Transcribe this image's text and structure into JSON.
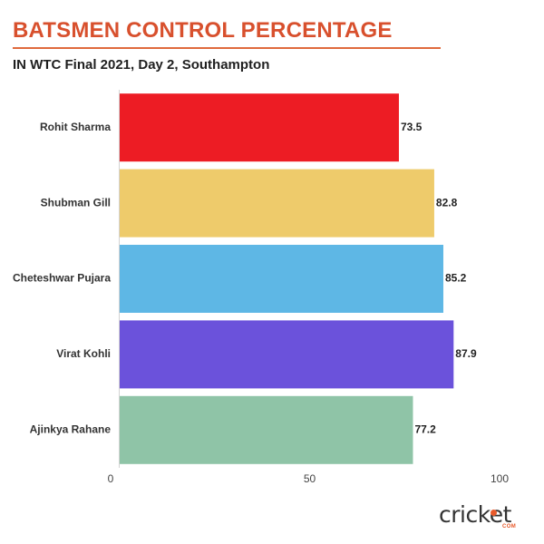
{
  "title": "BATSMEN CONTROL PERCENTAGE",
  "subtitle": "IN WTC Final 2021, Day 2, Southampton",
  "logo": {
    "text": "cricket",
    "sub": "COM"
  },
  "chart_data": {
    "type": "bar",
    "orientation": "horizontal",
    "categories": [
      "Rohit Sharma",
      "Shubman Gill",
      "Cheteshwar Pujara",
      "Virat Kohli",
      "Ajinkya Rahane"
    ],
    "values": [
      73.5,
      82.8,
      85.2,
      87.9,
      77.2
    ],
    "colors": [
      "#ed1c24",
      "#eecb6b",
      "#5eb7e5",
      "#6b52db",
      "#8fc4a7"
    ],
    "xlim": [
      0,
      100
    ],
    "xticks": [
      0,
      50,
      100
    ],
    "title": "BATSMEN CONTROL PERCENTAGE",
    "subtitle": "IN WTC Final 2021, Day 2, Southampton",
    "xlabel": "",
    "ylabel": "",
    "grid": false,
    "legend": "none"
  }
}
